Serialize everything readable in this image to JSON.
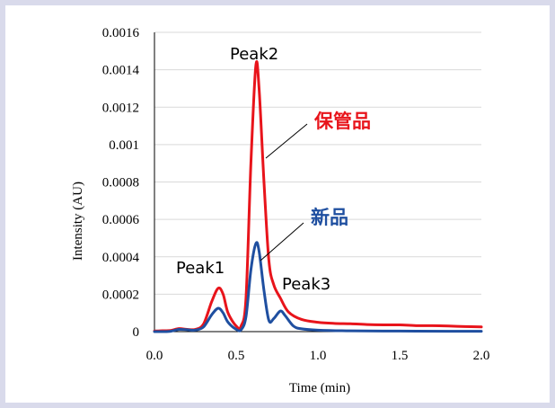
{
  "chart_data": {
    "type": "line",
    "xlabel": "Time (min)",
    "ylabel": "Intensity (AU)",
    "xlim": [
      0,
      2.0
    ],
    "ylim": [
      0,
      0.0016
    ],
    "x_ticks": [
      "0.0",
      "0.5",
      "1.0",
      "1.5",
      "2.0"
    ],
    "y_ticks": [
      "0",
      "0.0002",
      "0.0004",
      "0.0006",
      "0.0008",
      "0.001",
      "0.0012",
      "0.0014",
      "0.0016"
    ],
    "grid": "horizontal",
    "series": [
      {
        "name": "保管品",
        "color": "#e8141b",
        "points": [
          [
            0.0,
            3e-06
          ],
          [
            0.05,
            5e-06
          ],
          [
            0.1,
            6e-06
          ],
          [
            0.15,
            1.6e-05
          ],
          [
            0.2,
            1.2e-05
          ],
          [
            0.25,
            1.2e-05
          ],
          [
            0.3,
            4e-05
          ],
          [
            0.35,
            0.00016
          ],
          [
            0.39,
            0.000232
          ],
          [
            0.42,
            0.0002
          ],
          [
            0.45,
            0.0001
          ],
          [
            0.5,
            3e-05
          ],
          [
            0.53,
            3e-05
          ],
          [
            0.56,
            0.00018
          ],
          [
            0.59,
            0.0009
          ],
          [
            0.62,
            0.00142
          ],
          [
            0.64,
            0.0013
          ],
          [
            0.67,
            0.0008
          ],
          [
            0.7,
            0.00038
          ],
          [
            0.73,
            0.00025
          ],
          [
            0.77,
            0.00018
          ],
          [
            0.82,
            0.000105
          ],
          [
            0.9,
            6.5e-05
          ],
          [
            1.0,
            5e-05
          ],
          [
            1.1,
            4.4e-05
          ],
          [
            1.2,
            4.2e-05
          ],
          [
            1.3,
            3.8e-05
          ],
          [
            1.4,
            3.6e-05
          ],
          [
            1.5,
            3.6e-05
          ],
          [
            1.6,
            3.2e-05
          ],
          [
            1.7,
            3.2e-05
          ],
          [
            1.8,
            3e-05
          ],
          [
            1.9,
            2.7e-05
          ],
          [
            2.0,
            2.5e-05
          ]
        ]
      },
      {
        "name": "新品",
        "color": "#1f4fa0",
        "points": [
          [
            0.0,
            0.0
          ],
          [
            0.05,
            0.0
          ],
          [
            0.1,
            2e-06
          ],
          [
            0.15,
            1.2e-05
          ],
          [
            0.2,
            1e-05
          ],
          [
            0.25,
            8e-06
          ],
          [
            0.3,
            2.5e-05
          ],
          [
            0.35,
            9e-05
          ],
          [
            0.39,
            0.000125
          ],
          [
            0.42,
            0.0001
          ],
          [
            0.45,
            5e-05
          ],
          [
            0.5,
            1.2e-05
          ],
          [
            0.53,
            1e-05
          ],
          [
            0.56,
            8e-05
          ],
          [
            0.59,
            0.00033
          ],
          [
            0.62,
            0.00047
          ],
          [
            0.64,
            0.00043
          ],
          [
            0.67,
            0.00022
          ],
          [
            0.7,
            6e-05
          ],
          [
            0.73,
            7e-05
          ],
          [
            0.77,
            0.00011
          ],
          [
            0.8,
            8.5e-05
          ],
          [
            0.85,
            3e-05
          ],
          [
            0.9,
            1.5e-05
          ],
          [
            1.0,
            8e-06
          ],
          [
            1.2,
            4e-06
          ],
          [
            1.5,
            3e-06
          ],
          [
            1.8,
            2e-06
          ],
          [
            2.0,
            2e-06
          ]
        ]
      }
    ],
    "annotations": [
      "Peak1",
      "Peak2",
      "Peak3"
    ]
  },
  "labels": {
    "peak1": "Peak1",
    "peak2": "Peak2",
    "peak3": "Peak3",
    "stored": "保管品",
    "new": "新品"
  }
}
